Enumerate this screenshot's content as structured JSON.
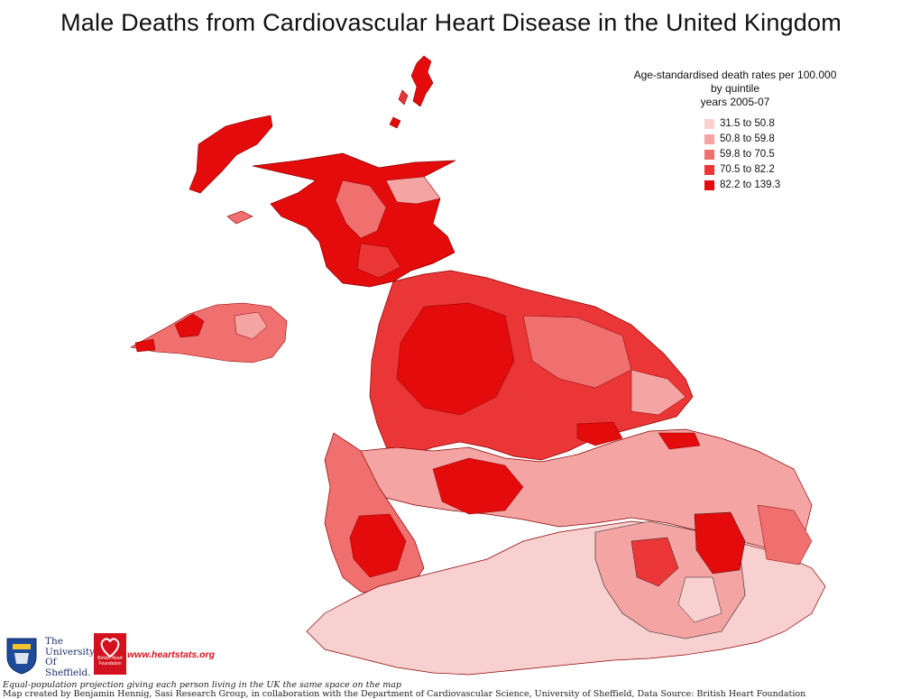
{
  "title": "Male Deaths from Cardiovascular Heart Disease in the United Kingdom",
  "legend": {
    "line1": "Age-standardised death rates per 100.000",
    "line2": "by quintile",
    "line3": "years 2005-07",
    "items": [
      {
        "label": "31.5 to 50.8",
        "color": "#f9d0d0"
      },
      {
        "label": "50.8 to 59.8",
        "color": "#f5a4a4"
      },
      {
        "label": "59.8 to 70.5",
        "color": "#f07070"
      },
      {
        "label": "70.5 to 82.2",
        "color": "#ea3636"
      },
      {
        "label": "82.2 to 139.3",
        "color": "#e30b0b"
      }
    ]
  },
  "footer": {
    "projection": "Equal-population projection giving each person living in the UK the same space on the map",
    "credit": "Map created by Benjamin Hennig, Sasi Research Group, in collaboration with the Department of Cardiovascular Science, University of Sheffield, Data Source: British Heart Foundation"
  },
  "logos": {
    "university": [
      "The",
      "University",
      "Of",
      "Sheffield."
    ],
    "bhf": "British Heart Foundation",
    "website": "www.heartstats.org"
  }
}
